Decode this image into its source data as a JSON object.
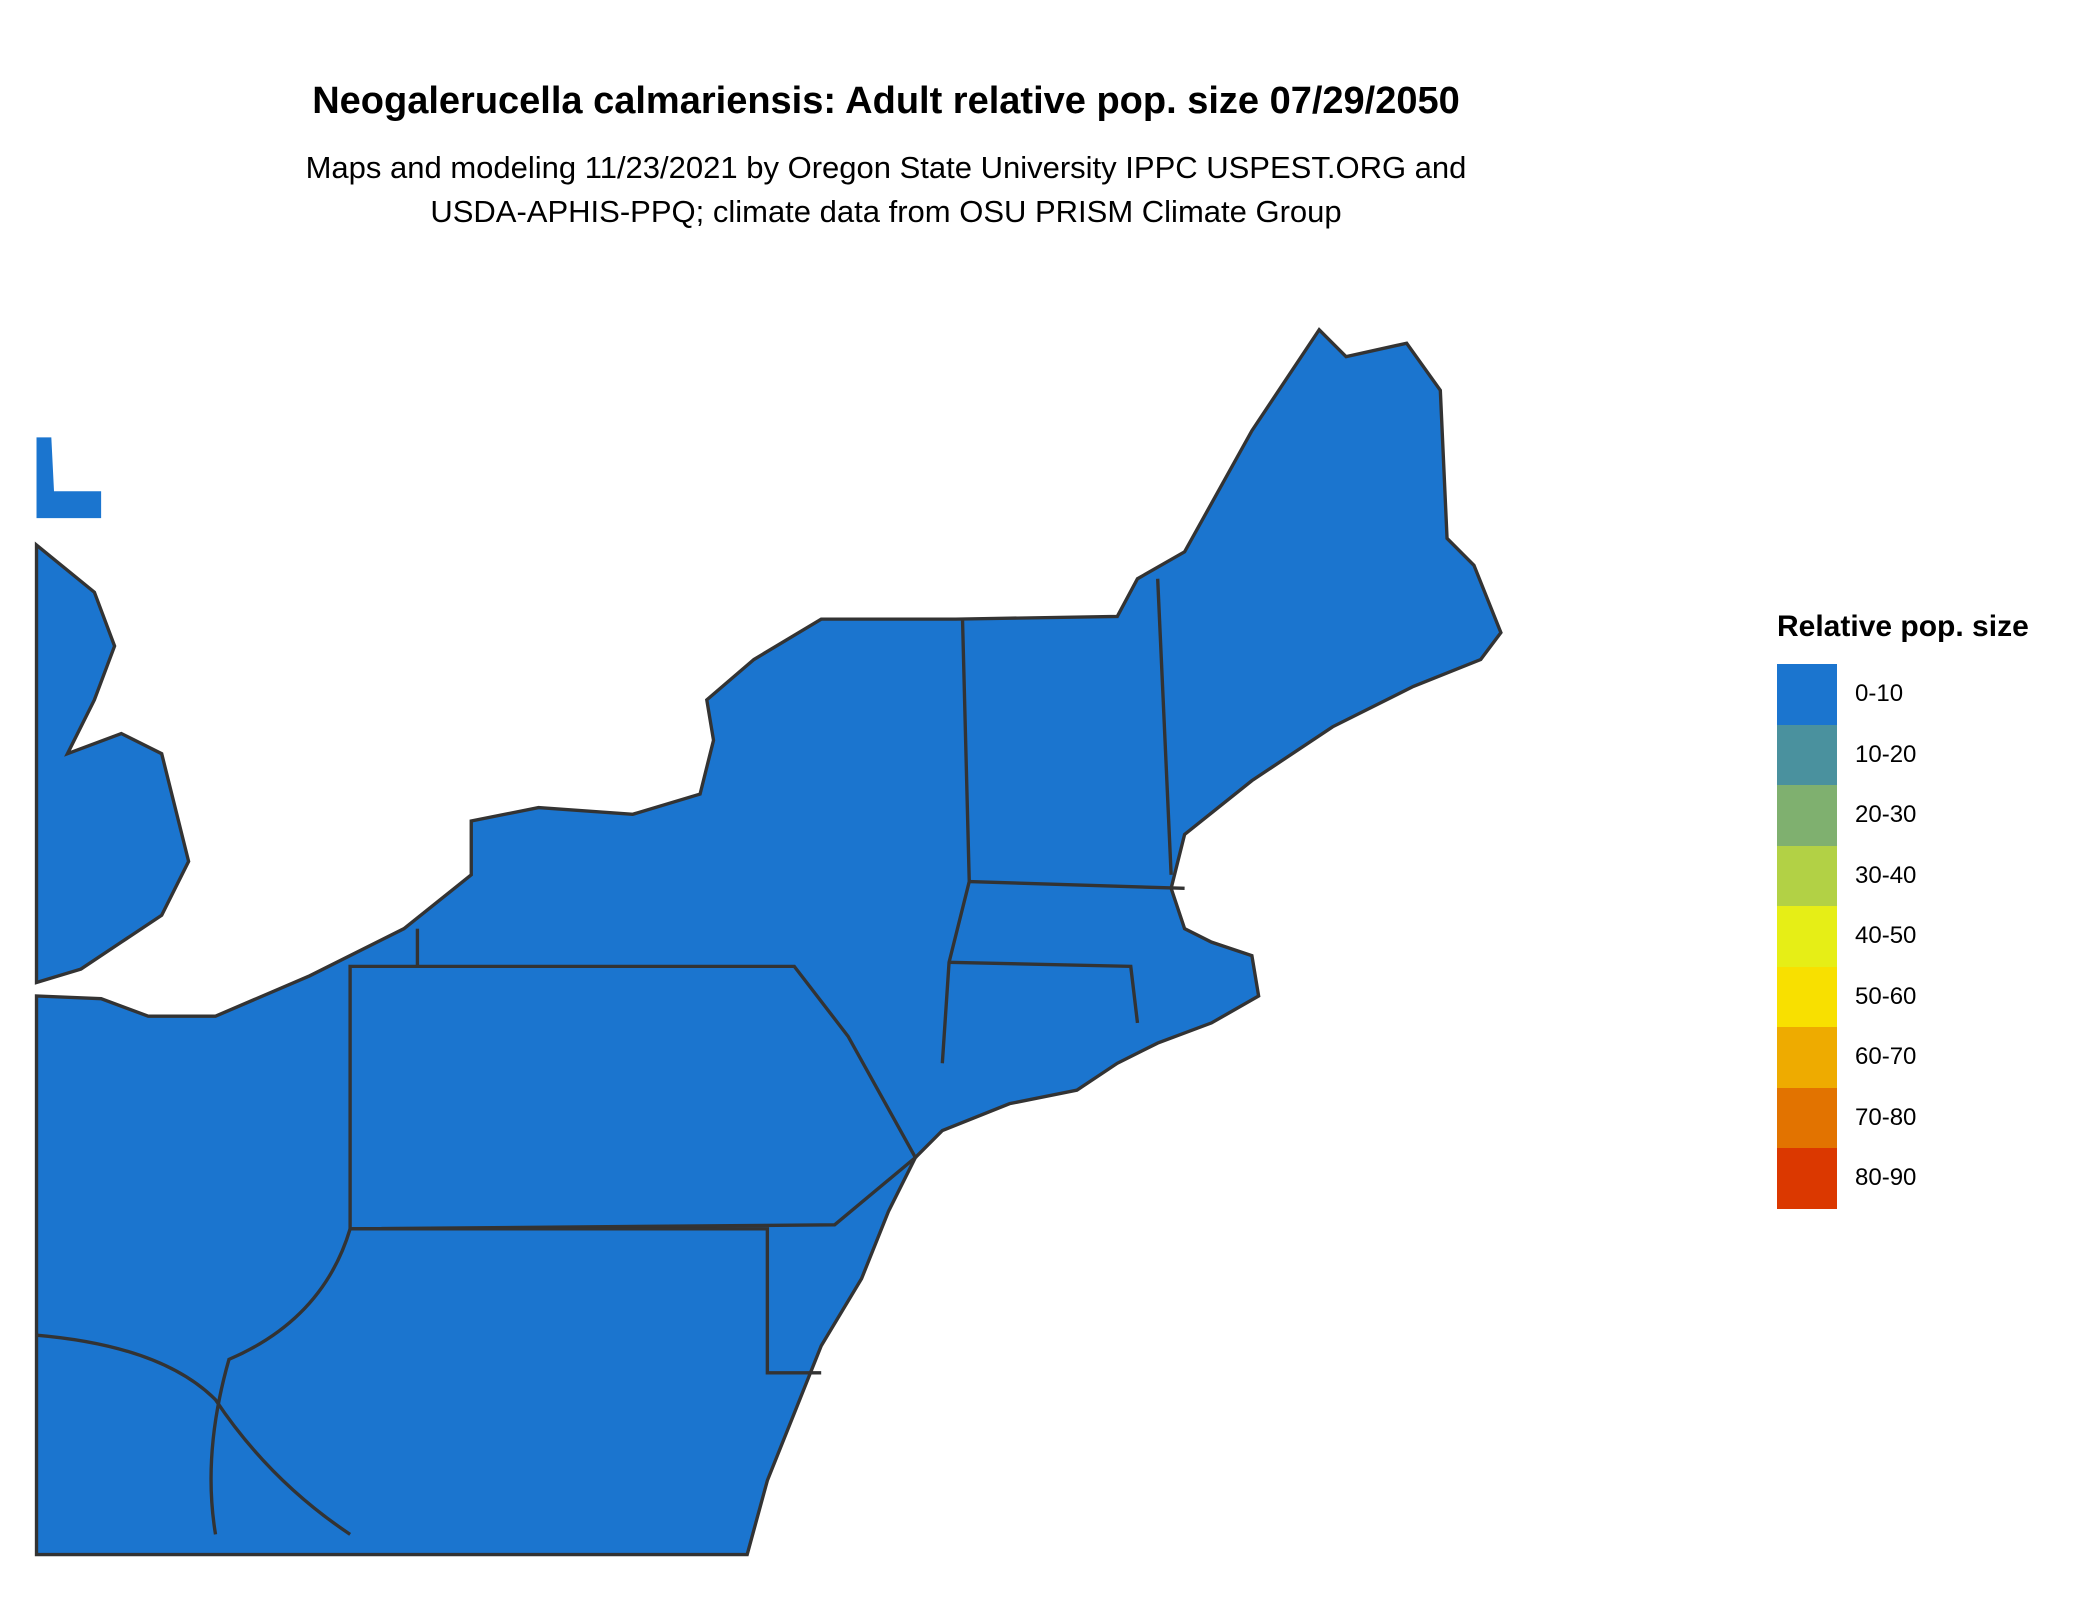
{
  "title": "Neogalerucella calmariensis: Adult relative pop. size 07/29/2050",
  "subtitle_lines": [
    "Maps and modeling 11/23/2021 by Oregon State University IPPC USPEST.ORG and",
    "USDA-APHIS-PPQ; climate data from OSU PRISM Climate Group"
  ],
  "legend": {
    "title": "Relative pop. size",
    "items": [
      {
        "label": "0-10",
        "color": "#1B75CF"
      },
      {
        "label": "10-20",
        "color": "#4A919E"
      },
      {
        "label": "20-30",
        "color": "#7FB06F"
      },
      {
        "label": "30-40",
        "color": "#B2D145"
      },
      {
        "label": "40-50",
        "color": "#E6EE16"
      },
      {
        "label": "50-60",
        "color": "#F8E000"
      },
      {
        "label": "60-70",
        "color": "#EEAB00"
      },
      {
        "label": "70-80",
        "color": "#E27300"
      },
      {
        "label": "80-90",
        "color": "#DB3800"
      }
    ]
  },
  "map": {
    "region": "Northeastern United States",
    "boundary_color": "#333333"
  }
}
